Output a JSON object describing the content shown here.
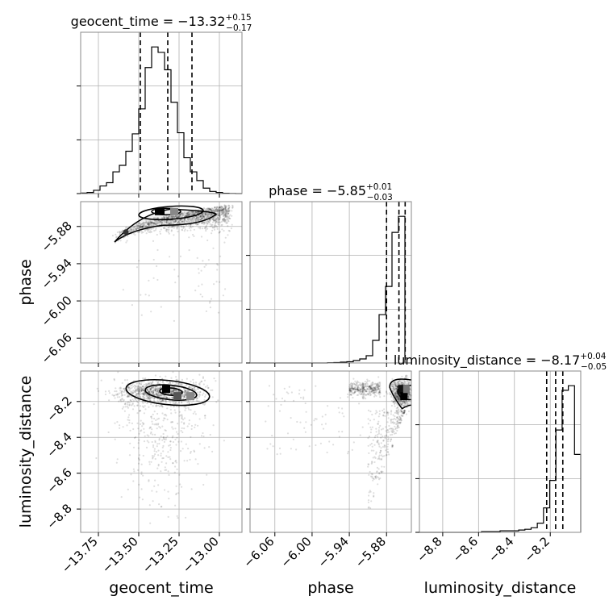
{
  "chart_data": {
    "type": "corner",
    "parameters": [
      {
        "name": "geocent_time",
        "range": [
          -13.86,
          -12.86
        ],
        "ticks": [
          -13.75,
          -13.5,
          -13.25,
          -13.0
        ],
        "tick_labels": [
          "−13.75",
          "−13.50",
          "−13.25",
          "−13.00"
        ]
      },
      {
        "name": "phase",
        "range": [
          -6.1,
          -5.84
        ],
        "ticks": [
          -6.06,
          -6.0,
          -5.94,
          -5.88
        ],
        "tick_labels": [
          "−6.06",
          "−6.00",
          "−5.94",
          "−5.88"
        ]
      },
      {
        "name": "luminosity_distance",
        "range": [
          -8.93,
          -8.03
        ],
        "ticks": [
          -8.8,
          -8.6,
          -8.4,
          -8.2
        ],
        "tick_labels": [
          "−8.8",
          "−8.6",
          "−8.4",
          "−8.2"
        ]
      }
    ],
    "titles": [
      {
        "base": "geocent_time = −13.32",
        "sup": "+0.15",
        "sub": "−0.17"
      },
      {
        "base": "phase = −5.85",
        "sup": "+0.01",
        "sub": "−0.03"
      },
      {
        "base": "luminosity_distance = −8.17",
        "sup": "+0.04",
        "sub": "−0.05"
      }
    ],
    "quantiles": [
      [
        -13.49,
        -13.32,
        -13.17
      ],
      [
        -5.88,
        -5.86,
        -5.85
      ],
      [
        -8.22,
        -8.17,
        -8.13
      ]
    ],
    "histograms": [
      {
        "bin_min": -13.86,
        "bin_max": -12.86,
        "counts": [
          0.5,
          1,
          3,
          7,
          10,
          20,
          26,
          39,
          55,
          78,
          116,
          135,
          130,
          114,
          84,
          56,
          33,
          20,
          12,
          5,
          2,
          1,
          0.3,
          0.1,
          0
        ]
      },
      {
        "bin_min": -6.1,
        "bin_max": -5.84,
        "counts": [
          0,
          0,
          0,
          0,
          0,
          0,
          0,
          0,
          0,
          0,
          0,
          0,
          0.3,
          0.5,
          1,
          1.5,
          3,
          5,
          9,
          28,
          60,
          95,
          162,
          182,
          0
        ]
      },
      {
        "bin_min": -8.93,
        "bin_max": -8.03,
        "counts": [
          0,
          0,
          0,
          0,
          0,
          0,
          0,
          0,
          0,
          0,
          0.5,
          0.5,
          0.5,
          1,
          1,
          1,
          1.5,
          2,
          3,
          6,
          16,
          34,
          67,
          93,
          96,
          51
        ]
      }
    ],
    "scatter_panels": [
      {
        "row": 1,
        "col": 0,
        "mode": "banana"
      },
      {
        "row": 2,
        "col": 0,
        "mode": "blob"
      },
      {
        "row": 2,
        "col": 1,
        "mode": "edge"
      }
    ]
  }
}
